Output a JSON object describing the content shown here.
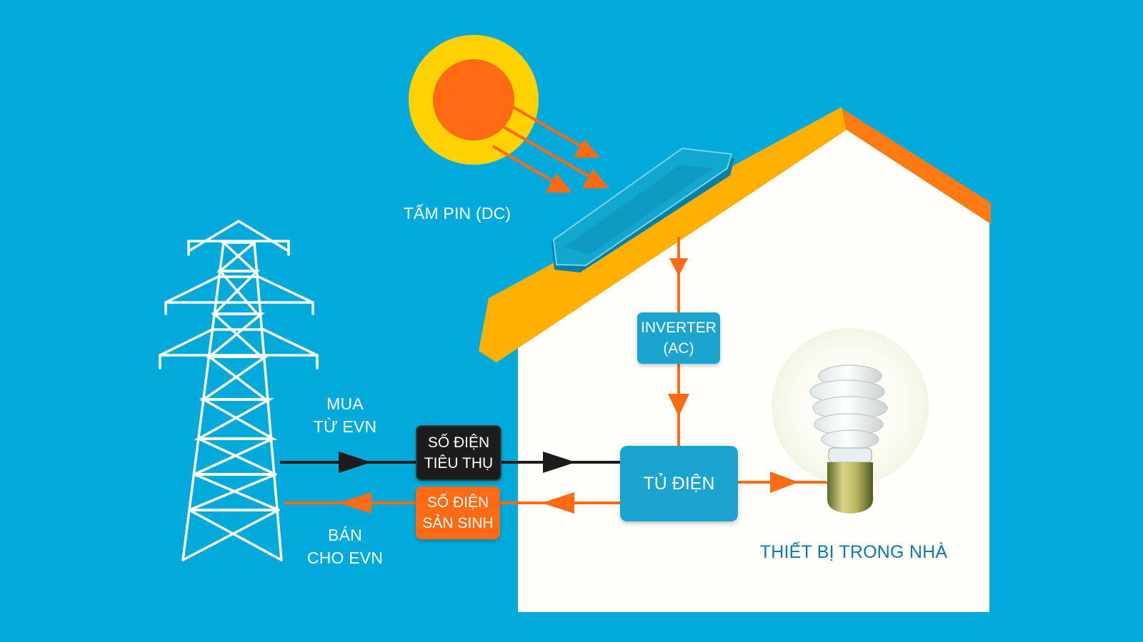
{
  "colors": {
    "background": "#02aadb",
    "arrow": "#ff6a14",
    "roof": "#ffb000",
    "roof_edge": "#ff7a12",
    "house": "#fffefa",
    "panel": "#0e9ec6",
    "box": "#1ba4cf",
    "meter_consumption": "#1c1c1c",
    "meter_production": "#ff6a14",
    "caption": "#0b7aa8"
  },
  "labels": {
    "panel": "TẤM PIN (DC)",
    "inverter": [
      "INVERTER",
      "(AC)"
    ],
    "buy": [
      "MUA",
      "TỪ EVN"
    ],
    "sell": [
      "BÁN",
      "CHO EVN"
    ],
    "meter_consumption": [
      "SỐ ĐIỆN",
      "TIÊU THỤ"
    ],
    "meter_production": [
      "SỐ ĐIỆN",
      "SẢN SINH"
    ],
    "panel_box": "TỦ ĐIỆN",
    "devices": "THIẾT BỊ TRONG NHÀ"
  },
  "icons": [
    "sun-icon",
    "sun-ray-arrow-icon",
    "solar-panel-icon",
    "power-tower-icon",
    "light-bulb-icon",
    "flow-arrow-icon"
  ]
}
